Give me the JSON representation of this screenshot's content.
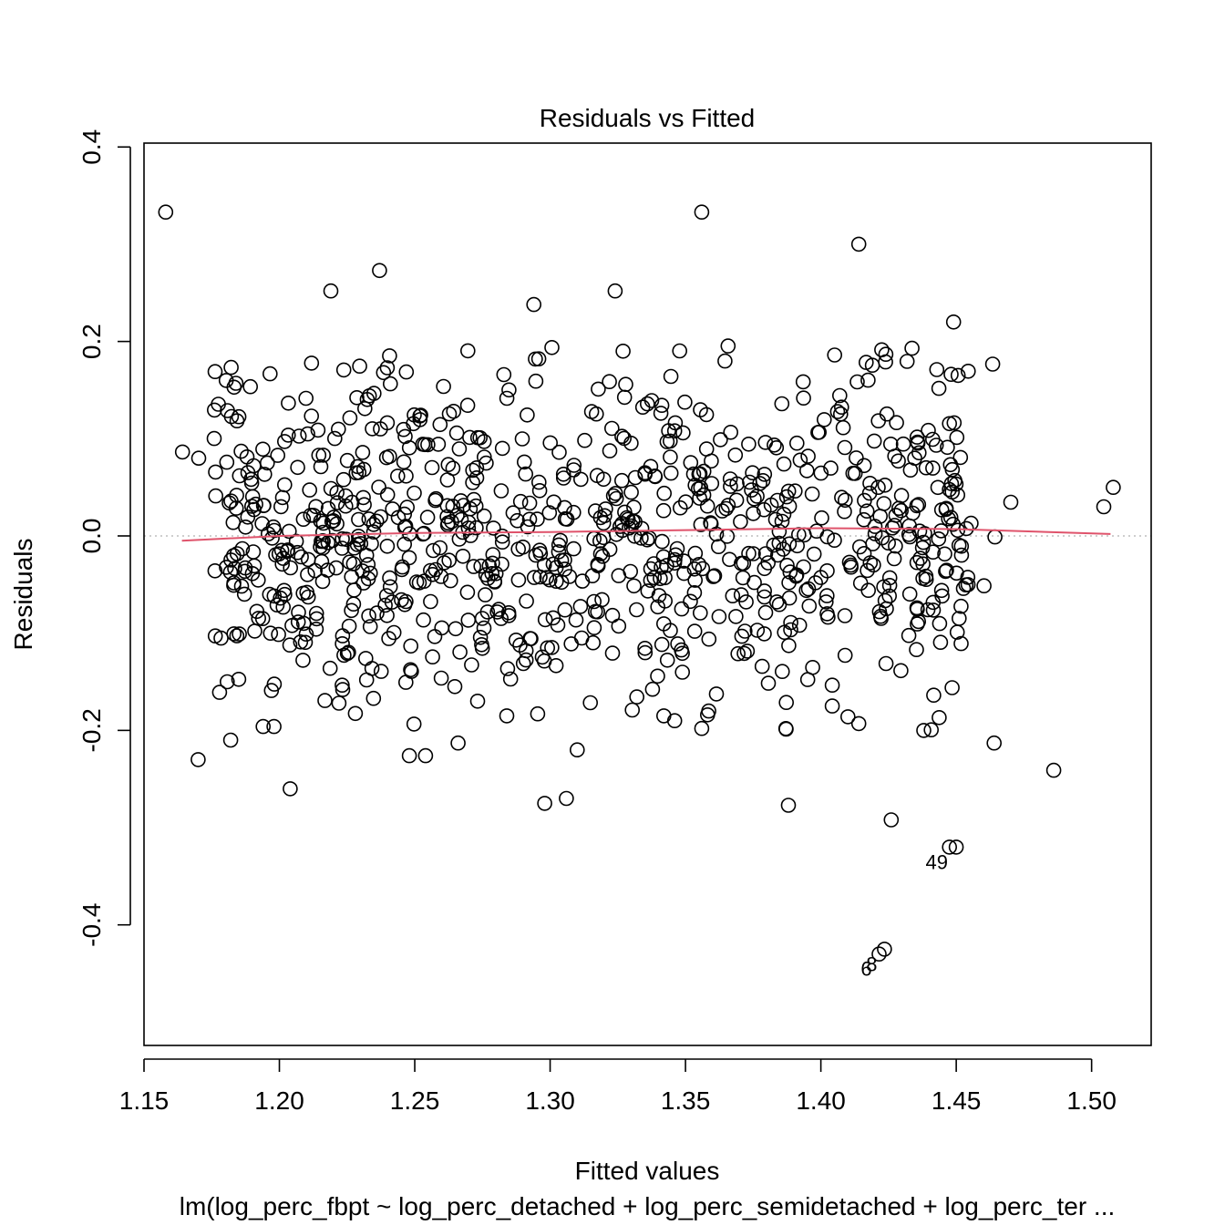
{
  "chart_data": {
    "type": "scatter",
    "title": "Residuals vs Fitted",
    "xlabel": "Fitted values",
    "ylabel": "Residuals",
    "caption": "lm(log_perc_fbpt ~ log_perc_detached + log_perc_semidetached + log_perc_ter ...",
    "xlim": [
      1.15,
      1.522
    ],
    "ylim": [
      -0.524,
      0.404
    ],
    "x_ticks": [
      1.15,
      1.2,
      1.25,
      1.3,
      1.35,
      1.4,
      1.45,
      1.5
    ],
    "x_tick_labels": [
      "1.15",
      "1.20",
      "1.25",
      "1.30",
      "1.35",
      "1.40",
      "1.45",
      "1.50"
    ],
    "y_ticks": [
      -0.4,
      -0.2,
      0.0,
      0.2,
      0.4
    ],
    "y_tick_labels": [
      "-0.4",
      "-0.2",
      "0.0",
      "0.2",
      "0.4"
    ],
    "reference_line": {
      "y": 0.0,
      "style": "dotted",
      "color": "#BEBEBE"
    },
    "smoother": {
      "name": "lowess",
      "color": "#DF536B",
      "x": [
        1.164,
        1.2,
        1.25,
        1.3,
        1.35,
        1.4,
        1.45,
        1.507
      ],
      "y": [
        -0.005,
        0.0,
        0.003,
        0.004,
        0.006,
        0.008,
        0.007,
        0.002
      ]
    },
    "labeled_outliers": [
      {
        "label": "49",
        "x": 1.4475,
        "y": -0.32
      },
      {
        "label": "6",
        "x": 1.4215,
        "y": -0.43
      },
      {
        "label": "8",
        "x": 1.4235,
        "y": -0.425
      }
    ],
    "grid": false,
    "legend": "none",
    "n_points": 960,
    "point_color": "#000000",
    "points": {
      "x": [
        1.17,
        1.182,
        1.194,
        1.204,
        1.222,
        1.248,
        1.284,
        1.298,
        1.306,
        1.346,
        1.356,
        1.388,
        1.41,
        1.426,
        1.45,
        1.464,
        1.486,
        1.254,
        1.198,
        1.266,
        1.31,
        1.342,
        1.414,
        1.438
      ],
      "y": [
        -0.23,
        -0.21,
        -0.196,
        -0.26,
        -0.172,
        -0.226,
        -0.185,
        -0.275,
        -0.27,
        -0.19,
        -0.198,
        -0.277,
        -0.186,
        -0.292,
        -0.32,
        -0.213,
        -0.241,
        -0.226,
        -0.196,
        -0.213,
        -0.22,
        -0.185,
        -0.193,
        -0.2
      ]
    },
    "highlighted_points": {
      "x": [
        1.158,
        1.294,
        1.324,
        1.356,
        1.414,
        1.237,
        1.219,
        1.449,
        1.5045,
        1.508
      ],
      "y": [
        0.333,
        0.238,
        0.252,
        0.333,
        0.3,
        0.273,
        0.252,
        0.22,
        0.03,
        0.05
      ]
    }
  }
}
